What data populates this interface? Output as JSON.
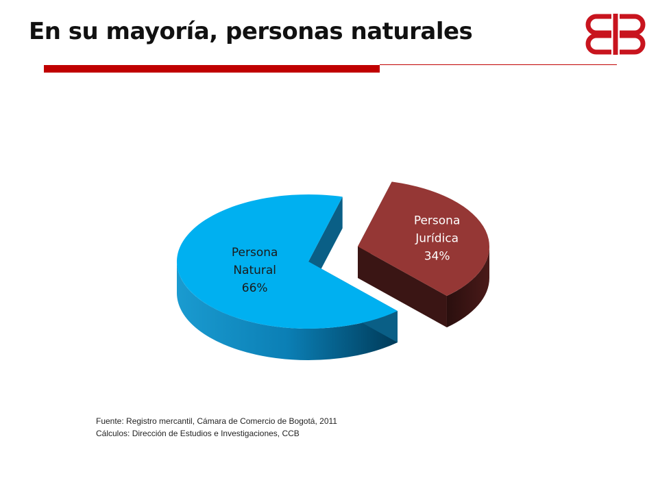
{
  "slide": {
    "title": "En su mayoría, personas naturales"
  },
  "branding": {
    "logo_icon": "ccb-logo-icon",
    "accent_color": "#c00000"
  },
  "chart_data": {
    "type": "pie",
    "style": "3d-exploded",
    "categories": [
      "Persona Natural",
      "Persona Jurídica"
    ],
    "values": [
      66,
      34
    ],
    "label_lines": [
      [
        "Persona",
        "Natural",
        "66%"
      ],
      [
        "Persona",
        "Jurídica",
        "34%"
      ]
    ],
    "colors": [
      "#00b0f0",
      "#953735"
    ],
    "title": "",
    "legend": "none"
  },
  "source": {
    "line1": "Fuente: Registro mercantil, Cámara  de Comercio de Bogotá, 2011",
    "line2": "Cálculos: Dirección de Estudios e Investigaciones, CCB"
  }
}
